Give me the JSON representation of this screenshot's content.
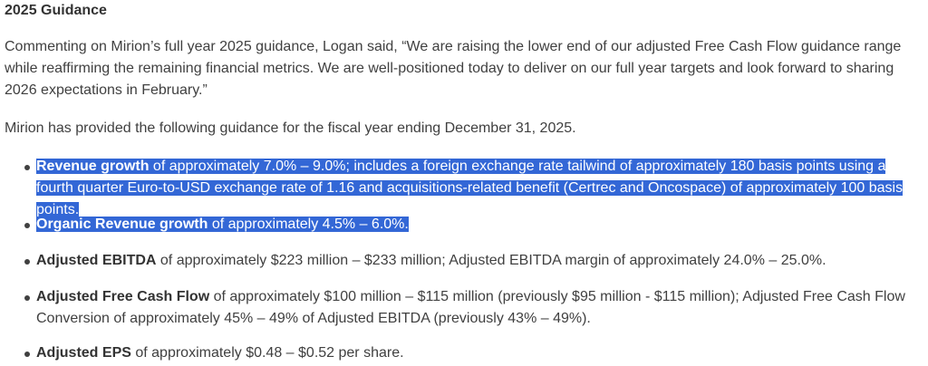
{
  "heading": "2025 Guidance",
  "paragraphs": [
    "Commenting on Mirion’s full year 2025 guidance, Logan said, “We are raising the lower end of our adjusted Free Cash Flow guidance range while reaffirming the remaining financial metrics. We are well-positioned today to deliver on our full year targets and look forward to sharing 2026 expectations in February.”",
    "Mirion has provided the following guidance for the fiscal year ending December 31, 2025."
  ],
  "bullets": [
    {
      "label": "Revenue growth",
      "text": " of approximately 7.0% – 9.0%; includes a foreign exchange rate tailwind of approximately 180 basis points using a fourth quarter Euro-to-USD exchange rate of 1.16 and acquisitions-related benefit (Certrec and Oncospace) of approximately 100 basis points.",
      "highlighted": true
    },
    {
      "label": "Organic Revenue growth",
      "text": " of approximately 4.5% – 6.0%.",
      "highlighted": true
    },
    {
      "label": "Adjusted EBITDA",
      "text": " of approximately $223 million – $233 million; Adjusted EBITDA margin of approximately 24.0% – 25.0%.",
      "highlighted": false
    },
    {
      "label": "Adjusted Free Cash Flow",
      "text": " of approximately $100 million – $115 million (previously $95 million - $115 million); Adjusted Free Cash Flow Conversion of approximately 45% – 49% of Adjusted EBITDA (previously 43% – 49%).",
      "highlighted": false
    },
    {
      "label": "Adjusted EPS",
      "text": " of approximately $0.48 – $0.52 per share.",
      "highlighted": false
    }
  ],
  "colors": {
    "highlight": "#3367d6",
    "text": "#404040"
  }
}
